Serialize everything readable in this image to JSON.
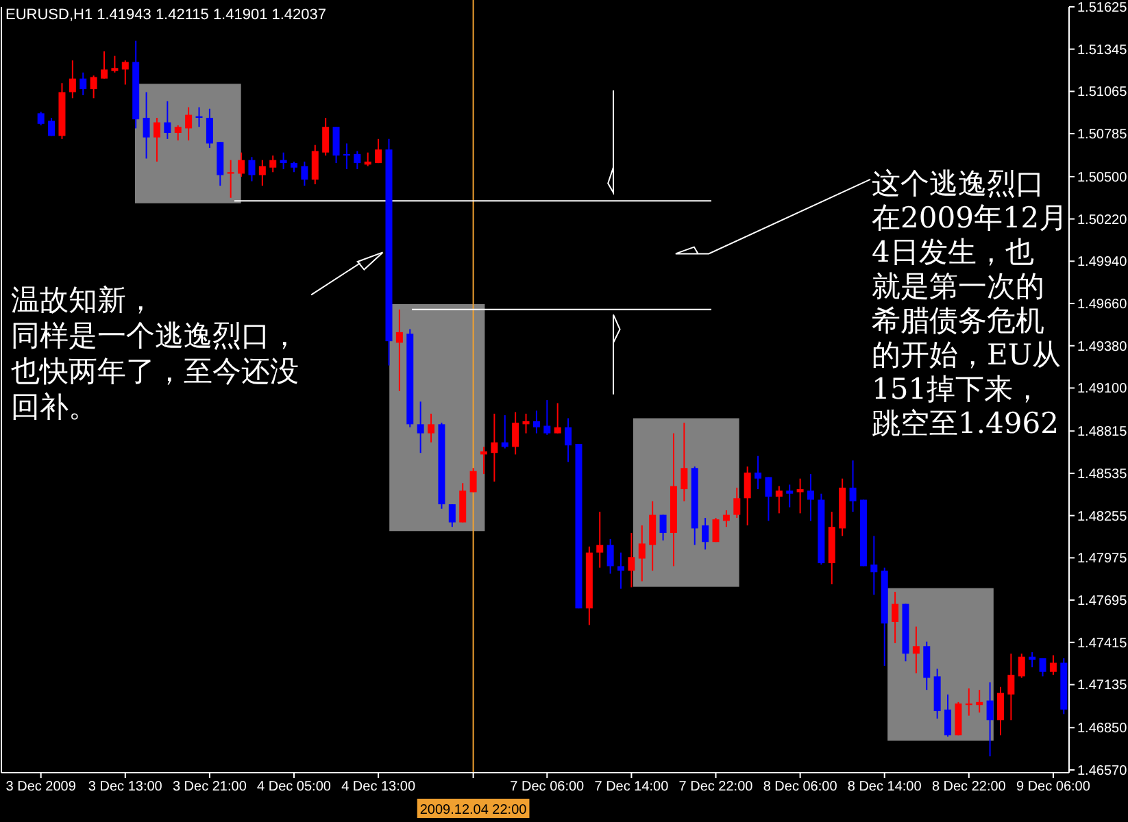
{
  "chart_data": {
    "type": "candlestick",
    "title": "EURUSD,H1 1.41943 1.42115 1.41901 1.42037",
    "categories": [
      "3 Dec 2009",
      null,
      null,
      null,
      null,
      null,
      null,
      null,
      "3 Dec 13:00",
      null,
      null,
      null,
      null,
      null,
      null,
      null,
      "3 Dec 21:00",
      null,
      null,
      null,
      null,
      null,
      null,
      null,
      "4 Dec 05:00",
      null,
      null,
      null,
      null,
      null,
      null,
      null,
      "4 Dec 13:00",
      null,
      null,
      null,
      null,
      null,
      null,
      null,
      null,
      "2009.12.04 22:00",
      null,
      null,
      null,
      null,
      null,
      null,
      "7 Dec 06:00",
      null,
      null,
      null,
      null,
      null,
      null,
      null,
      "7 Dec 14:00",
      null,
      null,
      null,
      null,
      null,
      null,
      null,
      "7 Dec 22:00",
      null,
      null,
      null,
      null,
      null,
      null,
      null,
      "8 Dec 06:00",
      null,
      null,
      null,
      null,
      null,
      null,
      null,
      "8 Dec 14:00",
      null,
      null,
      null,
      null,
      null,
      null,
      null,
      "8 Dec 22:00",
      null,
      null,
      null,
      null,
      null,
      null,
      null,
      "9 Dec 06:00",
      null
    ],
    "ohlc": [
      [
        1.5092,
        1.5093,
        1.5084,
        1.5085
      ],
      [
        1.5087,
        1.5089,
        1.5077,
        1.5077
      ],
      [
        1.5077,
        1.5112,
        1.5075,
        1.5106
      ],
      [
        1.5106,
        1.5127,
        1.5102,
        1.5115
      ],
      [
        1.5115,
        1.5119,
        1.5104,
        1.5108
      ],
      [
        1.5108,
        1.5117,
        1.5102,
        1.5116
      ],
      [
        1.5115,
        1.5133,
        1.5115,
        1.5121
      ],
      [
        1.512,
        1.513,
        1.5119,
        1.5122
      ],
      [
        1.5121,
        1.5127,
        1.5111,
        1.5126
      ],
      [
        1.5126,
        1.514,
        1.5082,
        1.5088
      ],
      [
        1.5089,
        1.5106,
        1.5062,
        1.5076
      ],
      [
        1.5076,
        1.5089,
        1.506,
        1.5086
      ],
      [
        1.5086,
        1.51,
        1.5075,
        1.5079
      ],
      [
        1.5079,
        1.5084,
        1.5074,
        1.5083
      ],
      [
        1.5082,
        1.5096,
        1.5074,
        1.5091
      ],
      [
        1.509,
        1.5096,
        1.5083,
        1.5089
      ],
      [
        1.5089,
        1.5095,
        1.5069,
        1.5072
      ],
      [
        1.5073,
        1.5073,
        1.5044,
        1.5051
      ],
      [
        1.5052,
        1.5061,
        1.5036,
        1.5053
      ],
      [
        1.5052,
        1.5066,
        1.505,
        1.5061
      ],
      [
        1.5061,
        1.5063,
        1.5047,
        1.5051
      ],
      [
        1.5051,
        1.5061,
        1.5044,
        1.5057
      ],
      [
        1.5056,
        1.5064,
        1.5053,
        1.5061
      ],
      [
        1.5061,
        1.5066,
        1.5055,
        1.5059
      ],
      [
        1.5059,
        1.506,
        1.5053,
        1.5056
      ],
      [
        1.5057,
        1.506,
        1.5044,
        1.5048
      ],
      [
        1.5048,
        1.5071,
        1.5045,
        1.5067
      ],
      [
        1.5066,
        1.5089,
        1.5064,
        1.5083
      ],
      [
        1.5083,
        1.5083,
        1.5059,
        1.5064
      ],
      [
        1.5065,
        1.5072,
        1.5055,
        1.5064
      ],
      [
        1.5065,
        1.5067,
        1.5055,
        1.5059
      ],
      [
        1.5058,
        1.5066,
        1.5057,
        1.506
      ],
      [
        1.5059,
        1.5075,
        1.5059,
        1.5068
      ],
      [
        1.5068,
        1.5075,
        1.4925,
        1.4941
      ],
      [
        1.494,
        1.4962,
        1.4908,
        1.4947
      ],
      [
        1.4946,
        1.4949,
        1.4884,
        1.4886
      ],
      [
        1.4886,
        1.4901,
        1.4867,
        1.488
      ],
      [
        1.488,
        1.4893,
        1.4874,
        1.4886
      ],
      [
        1.4886,
        1.4887,
        1.483,
        1.4833
      ],
      [
        1.4833,
        1.4833,
        1.4818,
        1.4821
      ],
      [
        1.4821,
        1.4847,
        1.4821,
        1.4842
      ],
      [
        1.4841,
        1.4857,
        1.4841,
        1.4855
      ],
      [
        1.4866,
        1.4871,
        1.4853,
        1.4868
      ],
      [
        1.4867,
        1.4893,
        1.4848,
        1.4874
      ],
      [
        1.4874,
        1.4892,
        1.487,
        1.4871
      ],
      [
        1.4871,
        1.4894,
        1.4866,
        1.4887
      ],
      [
        1.4886,
        1.4893,
        1.488,
        1.4888
      ],
      [
        1.4888,
        1.4895,
        1.488,
        1.4884
      ],
      [
        1.4885,
        1.4902,
        1.4879,
        1.488
      ],
      [
        1.488,
        1.49,
        1.488,
        1.4884
      ],
      [
        1.4884,
        1.489,
        1.4861,
        1.4872
      ],
      [
        1.4873,
        1.4873,
        1.4764,
        1.4764
      ],
      [
        1.4764,
        1.4805,
        1.4753,
        1.4801
      ],
      [
        1.4801,
        1.4828,
        1.4791,
        1.4806
      ],
      [
        1.4806,
        1.481,
        1.4787,
        1.4792
      ],
      [
        1.4792,
        1.4801,
        1.4777,
        1.4789
      ],
      [
        1.4789,
        1.4814,
        1.4778,
        1.4798
      ],
      [
        1.4797,
        1.4819,
        1.4782,
        1.4807
      ],
      [
        1.4806,
        1.4835,
        1.4789,
        1.4826
      ],
      [
        1.4826,
        1.4826,
        1.4809,
        1.4814
      ],
      [
        1.4814,
        1.488,
        1.4792,
        1.4845
      ],
      [
        1.4843,
        1.4887,
        1.4835,
        1.4857
      ],
      [
        1.4857,
        1.4858,
        1.4806,
        1.4817
      ],
      [
        1.4819,
        1.4824,
        1.4803,
        1.4808
      ],
      [
        1.4808,
        1.4824,
        1.4808,
        1.4823
      ],
      [
        1.4822,
        1.4829,
        1.4818,
        1.4826
      ],
      [
        1.4826,
        1.4844,
        1.4824,
        1.4837
      ],
      [
        1.4837,
        1.4858,
        1.4819,
        1.4854
      ],
      [
        1.4854,
        1.4865,
        1.4843,
        1.485
      ],
      [
        1.4851,
        1.4851,
        1.4822,
        1.4838
      ],
      [
        1.4838,
        1.4845,
        1.4827,
        1.4842
      ],
      [
        1.4842,
        1.4846,
        1.4831,
        1.484
      ],
      [
        1.4841,
        1.485,
        1.4827,
        1.4843
      ],
      [
        1.4842,
        1.4853,
        1.4822,
        1.4836
      ],
      [
        1.4836,
        1.484,
        1.4793,
        1.4794
      ],
      [
        1.4794,
        1.4828,
        1.478,
        1.4818
      ],
      [
        1.4817,
        1.485,
        1.4812,
        1.4844
      ],
      [
        1.4844,
        1.4862,
        1.4828,
        1.4835
      ],
      [
        1.4836,
        1.4836,
        1.4792,
        1.4792
      ],
      [
        1.4793,
        1.4812,
        1.4773,
        1.4788
      ],
      [
        1.4789,
        1.4791,
        1.4726,
        1.4754
      ],
      [
        1.4755,
        1.4775,
        1.4741,
        1.4767
      ],
      [
        1.4767,
        1.4767,
        1.4729,
        1.4734
      ],
      [
        1.4734,
        1.4752,
        1.4721,
        1.4739
      ],
      [
        1.4739,
        1.4742,
        1.471,
        1.4718
      ],
      [
        1.4719,
        1.4724,
        1.4691,
        1.4696
      ],
      [
        1.4697,
        1.4707,
        1.4679,
        1.468
      ],
      [
        1.468,
        1.4702,
        1.468,
        1.4701
      ],
      [
        1.47,
        1.4711,
        1.4693,
        1.4701
      ],
      [
        1.47,
        1.471,
        1.4695,
        1.4702
      ],
      [
        1.4703,
        1.4715,
        1.4666,
        1.469
      ],
      [
        1.469,
        1.4712,
        1.468,
        1.4708
      ],
      [
        1.4707,
        1.4734,
        1.469,
        1.472
      ],
      [
        1.4719,
        1.4734,
        1.4718,
        1.4732
      ],
      [
        1.4732,
        1.4735,
        1.4725,
        1.473
      ],
      [
        1.4731,
        1.4731,
        1.4719,
        1.4722
      ],
      [
        1.4722,
        1.4733,
        1.472,
        1.4728
      ],
      [
        1.4728,
        1.4731,
        1.4694,
        1.4697
      ]
    ],
    "colors": [
      "#0000ff",
      "#0000ff",
      "#ff0000",
      "#ff0000",
      "#0000ff",
      "#ff0000",
      "#ff0000",
      "#ff0000",
      "#ff0000",
      "#0000ff",
      "#0000ff",
      "#ff0000",
      "#0000ff",
      "#ff0000",
      "#ff0000",
      "#0000ff",
      "#0000ff",
      "#0000ff",
      "#ff0000",
      "#ff0000",
      "#0000ff",
      "#ff0000",
      "#ff0000",
      "#0000ff",
      "#0000ff",
      "#0000ff",
      "#ff0000",
      "#ff0000",
      "#0000ff",
      "#0000ff",
      "#0000ff",
      "#ff0000",
      "#ff0000",
      "#0000ff",
      "#ff0000",
      "#0000ff",
      "#0000ff",
      "#ff0000",
      "#0000ff",
      "#0000ff",
      "#ff0000",
      "#ff0000",
      "#ff0000",
      "#ff0000",
      "#0000ff",
      "#ff0000",
      "#ff0000",
      "#0000ff",
      "#0000ff",
      "#ff0000",
      "#0000ff",
      "#0000ff",
      "#ff0000",
      "#ff0000",
      "#0000ff",
      "#0000ff",
      "#ff0000",
      "#ff0000",
      "#ff0000",
      "#0000ff",
      "#ff0000",
      "#ff0000",
      "#0000ff",
      "#0000ff",
      "#ff0000",
      "#ff0000",
      "#ff0000",
      "#ff0000",
      "#0000ff",
      "#0000ff",
      "#ff0000",
      "#0000ff",
      "#ff0000",
      "#0000ff",
      "#0000ff",
      "#ff0000",
      "#ff0000",
      "#0000ff",
      "#0000ff",
      "#0000ff",
      "#0000ff",
      "#ff0000",
      "#0000ff",
      "#ff0000",
      "#0000ff",
      "#0000ff",
      "#0000ff",
      "#ff0000",
      "#ff0000",
      "#ff0000",
      "#0000ff",
      "#ff0000",
      "#ff0000",
      "#ff0000",
      "#0000ff",
      "#0000ff",
      "#ff0000",
      "#0000ff"
    ],
    "ylim": [
      1.4657,
      1.51625
    ],
    "yticks": [
      1.51625,
      1.51345,
      1.51065,
      1.50785,
      {
        "value": 1.505,
        "label": "1.50500"
      },
      {
        "value": 1.5022,
        "label": "1.50220"
      },
      {
        "value": 1.4994,
        "label": "1.49940"
      },
      {
        "value": 1.4966,
        "label": "1.49660"
      },
      {
        "value": 1.4938,
        "label": "1.49380"
      },
      {
        "value": 1.491,
        "label": "1.49100"
      },
      1.48815,
      1.48535,
      1.48255,
      1.47975,
      1.47695,
      1.47415,
      1.47135,
      {
        "value": 1.4685,
        "label": "1.46850"
      },
      {
        "value": 1.4657,
        "label": "1.46570"
      }
    ],
    "ref_lines": [
      {
        "axis": "x",
        "value": "2009.12.04 22:00",
        "color": "#f0a030"
      },
      {
        "axis": "y",
        "value": 1.5034,
        "color": "#ffffff"
      },
      {
        "axis": "y",
        "value": 1.4962,
        "color": "#ffffff"
      }
    ],
    "annotations": [
      "温故知新，",
      "同样是一个逃逸烈口，",
      "也快两年了，至今还没",
      "回补。",
      "这个逃逸烈口",
      "在2009年12月",
      "4日发生，也",
      "就是第一次的",
      "希腊债务危机",
      "的开始，EU从",
      "151掉下来，",
      "跳空至1.4962"
    ]
  }
}
